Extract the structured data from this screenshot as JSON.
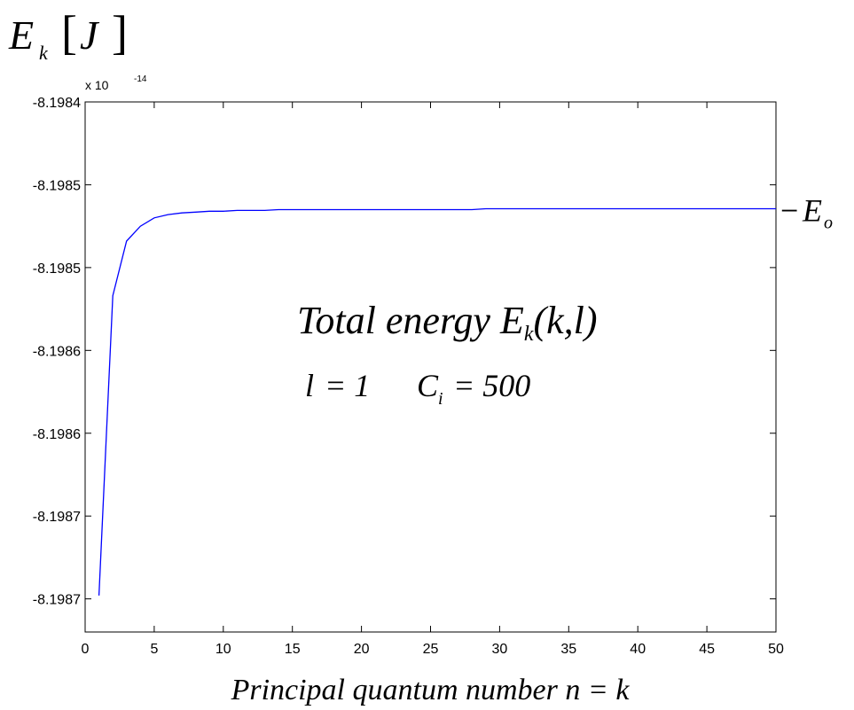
{
  "chart_data": {
    "type": "line",
    "ylabel": {
      "symbol": "E",
      "subscript": "k",
      "unit": "J"
    },
    "xlabel": "Principal quantum number n = k",
    "y_exponent": {
      "base": "x 10",
      "power": "-14"
    },
    "xlim": [
      0,
      50
    ],
    "ylim": [
      -8.19872,
      -8.1984
    ],
    "x_ticks": [
      0,
      5,
      10,
      15,
      20,
      25,
      30,
      35,
      40,
      45,
      50
    ],
    "y_ticks": [
      {
        "value": -8.1984,
        "label": "-8.1984"
      },
      {
        "value": -8.19845,
        "label": "-8.1985"
      },
      {
        "value": -8.1985,
        "label": "-8.1985"
      },
      {
        "value": -8.19855,
        "label": "-8.1986"
      },
      {
        "value": -8.1986,
        "label": "-8.1986"
      },
      {
        "value": -8.19865,
        "label": "-8.1987"
      },
      {
        "value": -8.1987,
        "label": "-8.1987"
      }
    ],
    "grid": false,
    "series": [
      {
        "color": "#0000ff",
        "x": [
          1,
          2,
          3,
          4,
          5,
          6,
          7,
          8,
          9,
          10,
          11,
          12,
          13,
          14,
          15,
          20,
          25,
          28,
          29,
          30,
          35,
          40,
          45,
          50
        ],
        "values": [
          -8.198698,
          -8.198517,
          -8.198484,
          -8.198475,
          -8.19847,
          -8.198468,
          -8.198467,
          -8.1984665,
          -8.198466,
          -8.198466,
          -8.1984655,
          -8.1984655,
          -8.1984655,
          -8.198465,
          -8.198465,
          -8.198465,
          -8.198465,
          -8.198465,
          -8.1984645,
          -8.1984645,
          -8.1984645,
          -8.1984645,
          -8.1984645,
          -8.1984645
        ]
      }
    ],
    "annotations": {
      "asymptote": {
        "prefix": "−",
        "symbol": "E",
        "subscript": "o",
        "y": -8.1984645
      },
      "title": {
        "main": "Total energy E",
        "subscript": "k",
        "suffix": "(k,l)"
      },
      "params": {
        "l_lhs": "l",
        "l_rhs": "= 1",
        "c_lhs": "C",
        "c_sub": "i",
        "c_rhs": "= 500"
      }
    }
  }
}
